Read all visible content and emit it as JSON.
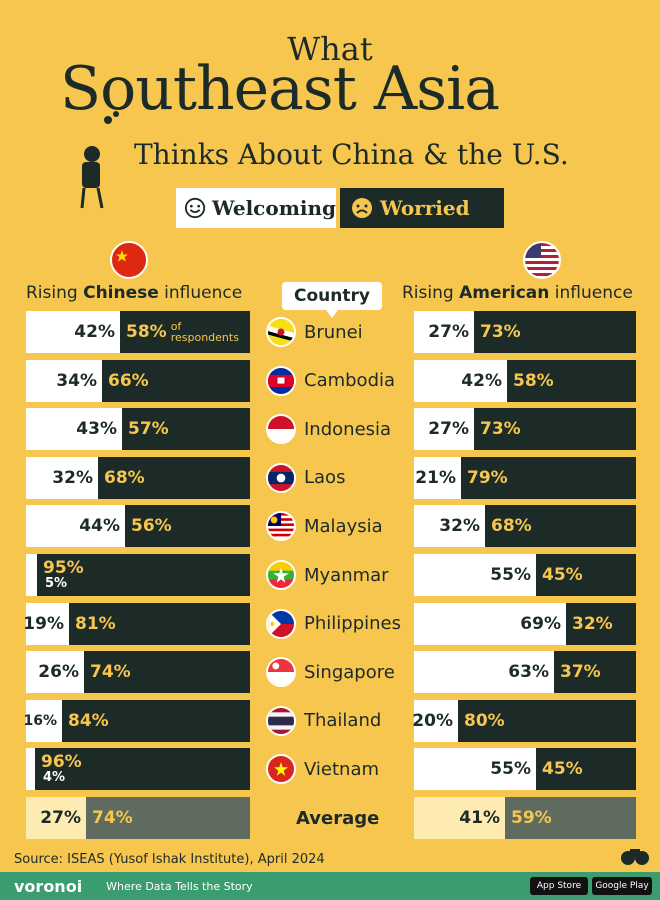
{
  "title": {
    "line1": "What",
    "line2": "Southeast Asia",
    "line3": "Thinks About China & the U.S."
  },
  "legend": {
    "welcoming": "Welcoming",
    "worried": "Worried"
  },
  "column_headers": {
    "china": {
      "prefix": "Rising ",
      "bold": "Chinese",
      "suffix": " influence"
    },
    "country": "Country",
    "us": {
      "prefix": "Rising ",
      "bold": "American",
      "suffix": " influence"
    }
  },
  "note_first_row": "of respondents",
  "colors": {
    "background": "#f6c64f",
    "dark": "#1d2b28",
    "welcome": "#ffffff",
    "avg_welcome": "#fdebb2",
    "avg_worried": "#5e6b5e",
    "footer": "#3b9c6f"
  },
  "chart_data": {
    "type": "bar",
    "categories": [
      "Brunei",
      "Cambodia",
      "Indonesia",
      "Laos",
      "Malaysia",
      "Myanmar",
      "Philippines",
      "Singapore",
      "Thailand",
      "Vietnam",
      "Average"
    ],
    "series": [
      {
        "name": "Welcoming",
        "group": "Rising Chinese influence",
        "values": [
          42,
          34,
          43,
          32,
          44,
          5,
          19,
          26,
          16,
          4,
          27
        ]
      },
      {
        "name": "Worried",
        "group": "Rising Chinese influence",
        "values": [
          58,
          66,
          57,
          68,
          56,
          95,
          81,
          74,
          84,
          96,
          74
        ]
      },
      {
        "name": "Welcoming",
        "group": "Rising American influence",
        "values": [
          27,
          42,
          27,
          21,
          32,
          55,
          69,
          63,
          20,
          55,
          41
        ]
      },
      {
        "name": "Worried",
        "group": "Rising American influence",
        "values": [
          73,
          58,
          73,
          79,
          68,
          45,
          32,
          37,
          80,
          45,
          59
        ]
      }
    ],
    "stacked": true
  },
  "rows": [
    {
      "country": "Brunei",
      "flag": "brunei-flag",
      "cn_w": 42,
      "cn_r": 58,
      "us_w": 27,
      "us_r": 73
    },
    {
      "country": "Cambodia",
      "flag": "cambodia-flag",
      "cn_w": 34,
      "cn_r": 66,
      "us_w": 42,
      "us_r": 58
    },
    {
      "country": "Indonesia",
      "flag": "indonesia-flag",
      "cn_w": 43,
      "cn_r": 57,
      "us_w": 27,
      "us_r": 73
    },
    {
      "country": "Laos",
      "flag": "laos-flag",
      "cn_w": 32,
      "cn_r": 68,
      "us_w": 21,
      "us_r": 79
    },
    {
      "country": "Malaysia",
      "flag": "malaysia-flag",
      "cn_w": 44,
      "cn_r": 56,
      "us_w": 32,
      "us_r": 68
    },
    {
      "country": "Myanmar",
      "flag": "myanmar-flag",
      "cn_w": 5,
      "cn_r": 95,
      "us_w": 55,
      "us_r": 45
    },
    {
      "country": "Philippines",
      "flag": "philippines-flag",
      "cn_w": 19,
      "cn_r": 81,
      "us_w": 69,
      "us_r": 32
    },
    {
      "country": "Singapore",
      "flag": "singapore-flag",
      "cn_w": 26,
      "cn_r": 74,
      "us_w": 63,
      "us_r": 37
    },
    {
      "country": "Thailand",
      "flag": "thailand-flag",
      "cn_w": 16,
      "cn_r": 84,
      "us_w": 20,
      "us_r": 80
    },
    {
      "country": "Vietnam",
      "flag": "vietnam-flag",
      "cn_w": 4,
      "cn_r": 96,
      "us_w": 55,
      "us_r": 45
    },
    {
      "country": "Average",
      "flag": "",
      "cn_w": 27,
      "cn_r": 74,
      "us_w": 41,
      "us_r": 59
    }
  ],
  "source": "Source: ISEAS (Yusof Ishak Institute), April 2024",
  "footer": {
    "brand": "voronoi",
    "tagline": "Where Data Tells the Story",
    "app_store": "App Store",
    "google_play": "Google Play"
  }
}
